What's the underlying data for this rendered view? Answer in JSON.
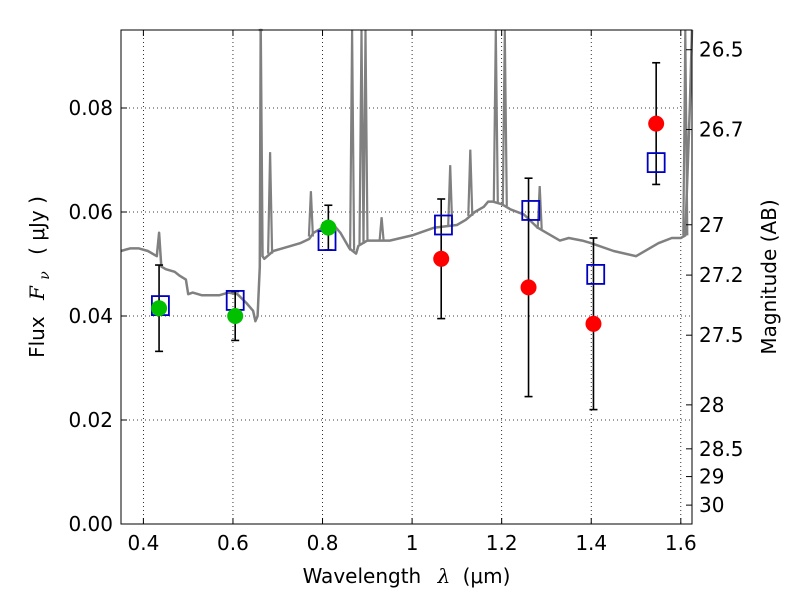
{
  "chart_data": {
    "type": "scatter",
    "xlabel_prefix": "Wavelength",
    "xlabel_symbol": "λ",
    "xlabel_unit": "(μm)",
    "ylabel_prefix": "Flux",
    "ylabel_symbol": "F",
    "ylabel_subscript": "ν",
    "ylabel_unit": "( μJy )",
    "y2label": "Magnitude (AB)",
    "xlim": [
      0.35,
      1.625
    ],
    "ylim": [
      0.0,
      0.095
    ],
    "grid": true,
    "x_ticks": [
      0.4,
      0.6,
      0.8,
      1.0,
      1.2,
      1.4,
      1.6
    ],
    "x_tick_labels": [
      "0.4",
      "0.6",
      "0.8",
      "1",
      "1.2",
      "1.4",
      "1.6"
    ],
    "y_ticks": [
      0.0,
      0.02,
      0.04,
      0.06,
      0.08
    ],
    "y_tick_labels": [
      "0.00",
      "0.02",
      "0.04",
      "0.06",
      "0.08"
    ],
    "mag_ticks": [
      26.5,
      26.7,
      27,
      27.2,
      27.5,
      28,
      28.5,
      29,
      30
    ],
    "mag_tick_labels": [
      "26.5",
      "26.7",
      "27",
      "27.2",
      "27.5",
      "28",
      "28.5",
      "29",
      "30"
    ],
    "colors": {
      "model": "#808080",
      "green": "#00c000",
      "red": "#ff0000",
      "square": "#0000c0",
      "errorbar": "#000000"
    },
    "green_points": {
      "x": [
        0.435,
        0.605,
        0.813
      ],
      "y": [
        0.0415,
        0.04,
        0.057
      ],
      "err": [
        0.0083,
        0.0047,
        0.0043
      ]
    },
    "red_points": {
      "x": [
        1.065,
        1.26,
        1.405,
        1.545
      ],
      "y": [
        0.051,
        0.0455,
        0.0385,
        0.077
      ],
      "err": [
        0.0115,
        0.021,
        0.0165,
        0.0117
      ]
    },
    "model_squares": {
      "x": [
        0.438,
        0.605,
        0.81,
        1.07,
        1.265,
        1.41,
        1.545
      ],
      "y": [
        0.042,
        0.043,
        0.0545,
        0.0575,
        0.0603,
        0.048,
        0.0695
      ]
    },
    "model_sed": {
      "x": [
        0.35,
        0.37,
        0.39,
        0.41,
        0.43,
        0.435,
        0.44,
        0.45,
        0.47,
        0.48,
        0.495,
        0.5,
        0.51,
        0.53,
        0.55,
        0.57,
        0.59,
        0.61,
        0.63,
        0.645,
        0.65,
        0.655,
        0.66,
        0.662,
        0.666,
        0.67,
        0.69,
        0.71,
        0.73,
        0.75,
        0.77,
        0.78,
        0.8,
        0.82,
        0.84,
        0.86,
        0.875,
        0.88,
        0.9,
        0.95,
        1.0,
        1.05,
        1.1,
        1.12,
        1.14,
        1.16,
        1.17,
        1.18,
        1.2,
        1.22,
        1.25,
        1.28,
        1.3,
        1.33,
        1.35,
        1.38,
        1.4,
        1.45,
        1.5,
        1.55,
        1.58,
        1.6,
        1.61,
        1.62,
        1.625
      ],
      "y": [
        0.0525,
        0.053,
        0.053,
        0.0525,
        0.0515,
        0.056,
        0.0495,
        0.049,
        0.0485,
        0.0478,
        0.047,
        0.0442,
        0.0445,
        0.044,
        0.044,
        0.044,
        0.0445,
        0.0442,
        0.0425,
        0.041,
        0.039,
        0.04,
        0.0495,
        0.095,
        0.0515,
        0.051,
        0.0525,
        0.053,
        0.0535,
        0.054,
        0.0548,
        0.056,
        0.057,
        0.058,
        0.056,
        0.053,
        0.052,
        0.0535,
        0.0545,
        0.0545,
        0.0555,
        0.057,
        0.0575,
        0.0585,
        0.06,
        0.061,
        0.062,
        0.062,
        0.0615,
        0.0605,
        0.0595,
        0.057,
        0.056,
        0.0545,
        0.055,
        0.0545,
        0.054,
        0.0525,
        0.0515,
        0.054,
        0.055,
        0.055,
        0.0555,
        0.08,
        0.095
      ]
    },
    "model_spikes": [
      {
        "x": 0.662,
        "y": 0.095
      },
      {
        "x": 0.683,
        "y": 0.0715
      },
      {
        "x": 0.774,
        "y": 0.064
      },
      {
        "x": 0.866,
        "y": 0.095
      },
      {
        "x": 0.887,
        "y": 0.095
      },
      {
        "x": 0.896,
        "y": 0.095
      },
      {
        "x": 0.932,
        "y": 0.059
      },
      {
        "x": 1.085,
        "y": 0.069
      },
      {
        "x": 1.13,
        "y": 0.072
      },
      {
        "x": 1.187,
        "y": 0.095
      },
      {
        "x": 1.207,
        "y": 0.095
      },
      {
        "x": 1.285,
        "y": 0.065
      },
      {
        "x": 1.61,
        "y": 0.095
      }
    ]
  }
}
